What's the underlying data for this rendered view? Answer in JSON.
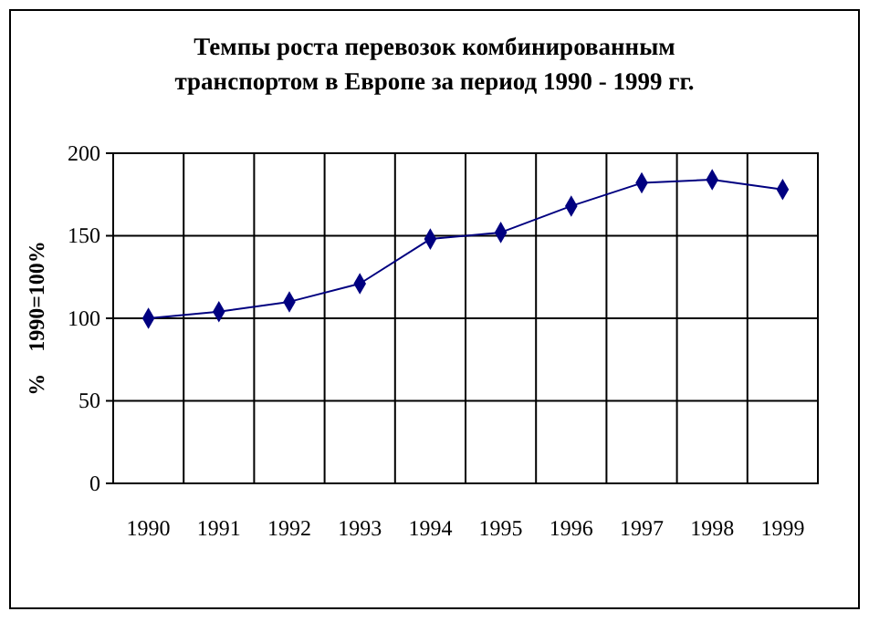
{
  "chart_data": {
    "type": "line",
    "title": "Темпы роста перевозок комбинированным транспортом в Европе за период 1990 - 1999 гг.",
    "ylabel": "%    1990=100%",
    "categories": [
      "1990",
      "1991",
      "1992",
      "1993",
      "1994",
      "1995",
      "1996",
      "1997",
      "1998",
      "1999"
    ],
    "series": [
      {
        "color": "#000080",
        "values": [
          100,
          104,
          110,
          121,
          148,
          152,
          168,
          182,
          184,
          178
        ]
      }
    ],
    "ylim": [
      0,
      200
    ],
    "yticks": [
      0,
      50,
      100,
      150,
      200
    ],
    "grid": true,
    "marker": "diamond",
    "line_style": "solid"
  }
}
